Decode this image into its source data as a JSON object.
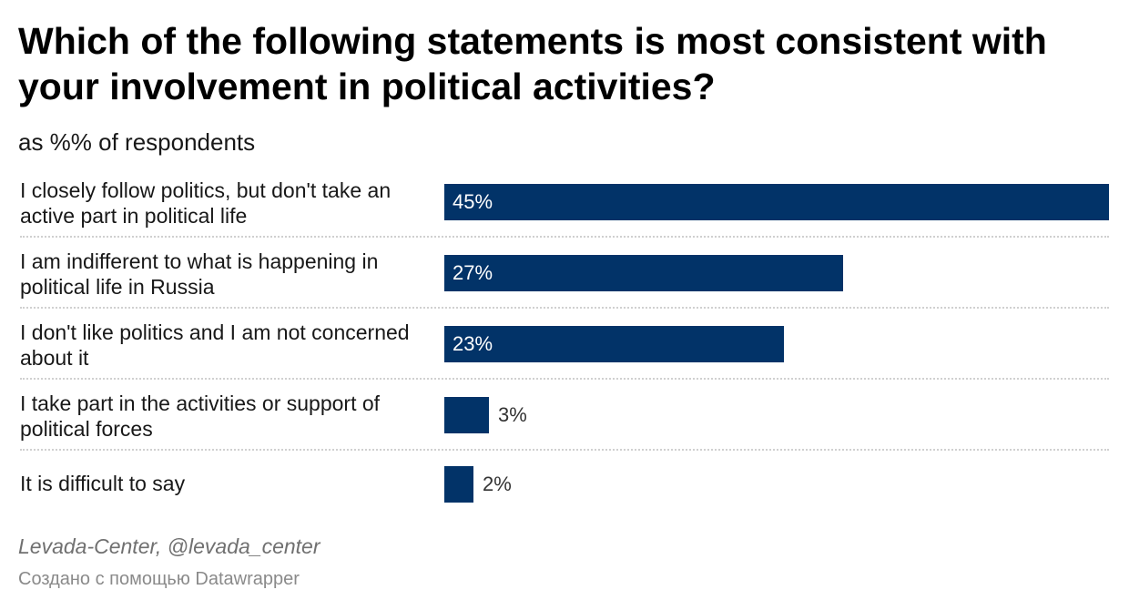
{
  "chart_data": {
    "type": "bar",
    "orientation": "horizontal",
    "title": "Which of the following statements is most consistent with your involvement in political activities?",
    "subtitle": "as %% of respondents",
    "categories": [
      "I closely follow politics, but don't take an active part in political life",
      "I am indifferent to what is happening in political life in Russia",
      "I don't like politics and I am not concerned about it",
      "I take part in the activities or support of political forces",
      "It is difficult to say"
    ],
    "values": [
      45,
      27,
      23,
      3,
      2
    ],
    "value_labels": [
      "45%",
      "27%",
      "23%",
      "3%",
      "2%"
    ],
    "xlim": [
      0,
      45
    ],
    "unit": "%",
    "bar_color": "#023368",
    "grid": false
  },
  "footer": {
    "source": "Levada-Center, @levada_center",
    "credit": "Создано с помощью Datawrapper"
  }
}
